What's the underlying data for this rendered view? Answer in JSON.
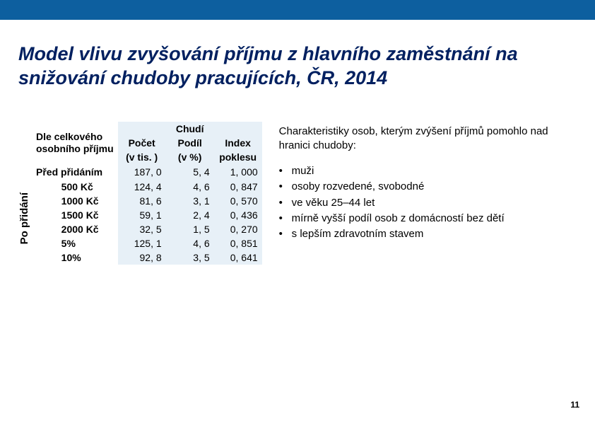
{
  "colors": {
    "topbar": "#0d5f9f",
    "title": "#002060",
    "cell_bg": "#e7f0f7",
    "text": "#000000",
    "page_bg": "#ffffff"
  },
  "title": "Model vlivu zvyšování příjmu z hlavního zaměstnání na  snižování chudoby pracujících, ČR, 2014",
  "table": {
    "corner_l1": "Dle celkového",
    "corner_l2": "osobního příjmu",
    "group_header": "Chudí",
    "col1_l1": "Počet",
    "col1_l2": "(v tis. )",
    "col2_l1": "Podíl",
    "col2_l2": "(v %)",
    "col3_l1": "Index",
    "col3_l2": "poklesu",
    "vlabel": "Po přidání",
    "rows": [
      {
        "label": "Před přidáním",
        "pocet": "187, 0",
        "podil": "5, 4",
        "index": "1, 000"
      },
      {
        "label": "500 Kč",
        "pocet": "124, 4",
        "podil": "4, 6",
        "index": "0, 847"
      },
      {
        "label": "1000 Kč",
        "pocet": "81, 6",
        "podil": "3, 1",
        "index": "0, 570"
      },
      {
        "label": "1500 Kč",
        "pocet": "59, 1",
        "podil": "2, 4",
        "index": "0, 436"
      },
      {
        "label": "2000 Kč",
        "pocet": "32, 5",
        "podil": "1, 5",
        "index": "0, 270"
      },
      {
        "label": "5%",
        "pocet": "125, 1",
        "podil": "4, 6",
        "index": "0, 851"
      },
      {
        "label": "10%",
        "pocet": "92, 8",
        "podil": "3, 5",
        "index": "0, 641"
      }
    ]
  },
  "right": {
    "intro": "Charakteristiky osob, kterým zvýšení příjmů pomohlo nad hranici chudoby:",
    "bullets": [
      "muži",
      "osoby rozvedené, svobodné",
      "ve věku 25–44 let",
      "mírně vyšší podíl osob z domácností bez dětí",
      "s lepším zdravotním stavem"
    ]
  },
  "page_number": "11"
}
